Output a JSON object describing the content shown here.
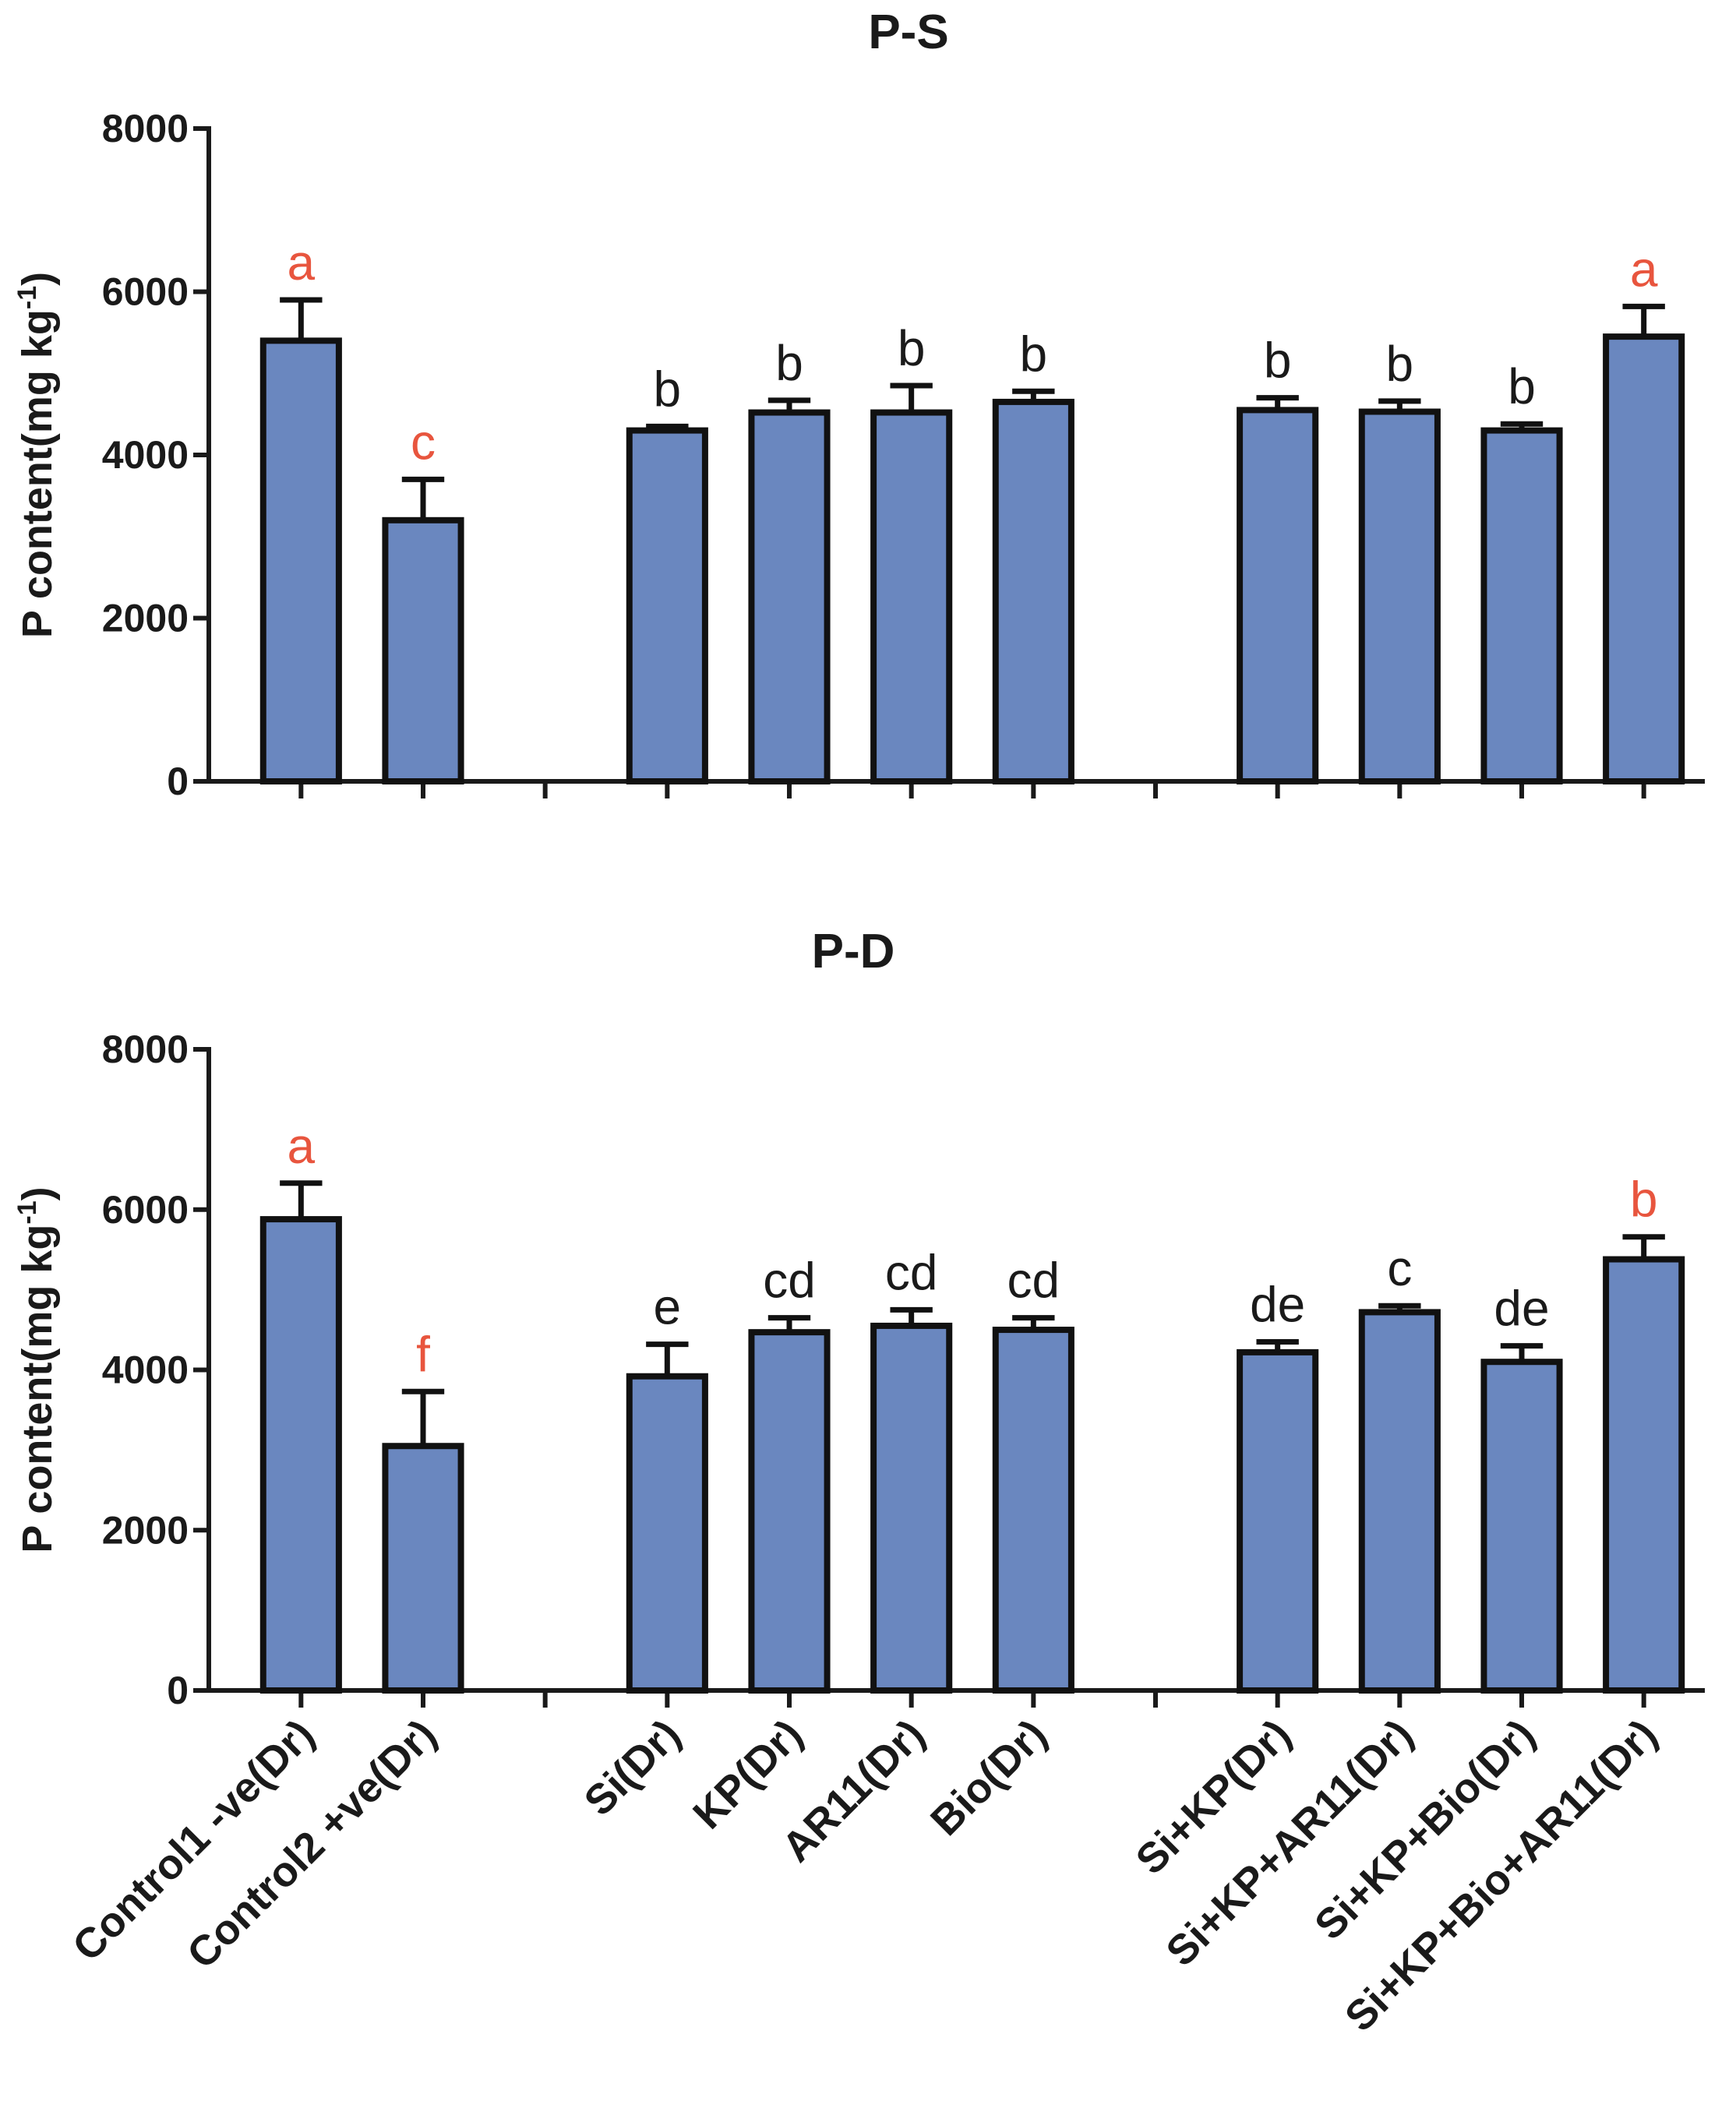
{
  "chart_data": [
    {
      "type": "bar",
      "title": "P-S",
      "ylabel": "P content(mg kg",
      "ylabel_superscript": "-1",
      "ylabel_suffix": ")",
      "xlabel": "",
      "ylim": [
        0,
        8000
      ],
      "yticks": [
        0,
        2000,
        4000,
        6000,
        8000
      ],
      "categories": [
        "Control1 -ve(Dr)",
        "Control2 +ve(Dr)",
        "Si(Dr)",
        "KP(Dr)",
        "AR11(Dr)",
        "Bio(Dr)",
        "Si+KP(Dr)",
        "Si+KP+AR11(Dr)",
        "Si+KP+Bio(Dr)",
        "Si+KP+Bio+AR11(Dr)"
      ],
      "values": [
        5400,
        3200,
        4300,
        4520,
        4520,
        4650,
        4550,
        4530,
        4300,
        5450
      ],
      "errors": [
        500,
        500,
        50,
        150,
        330,
        130,
        150,
        130,
        80,
        370
      ],
      "letters": [
        "a",
        "c",
        "b",
        "b",
        "b",
        "b",
        "b",
        "b",
        "b",
        "a"
      ],
      "letter_colors": [
        "#e8553e",
        "#e8553e",
        "#1a1a1a",
        "#1a1a1a",
        "#1a1a1a",
        "#1a1a1a",
        "#1a1a1a",
        "#1a1a1a",
        "#1a1a1a",
        "#e8553e"
      ],
      "bar_color": "#6a87bf",
      "show_category_labels": false
    },
    {
      "type": "bar",
      "title": "P-D",
      "ylabel": "P content(mg kg",
      "ylabel_superscript": "-1",
      "ylabel_suffix": ")",
      "xlabel": "",
      "ylim": [
        0,
        8000
      ],
      "yticks": [
        0,
        2000,
        4000,
        6000,
        8000
      ],
      "categories": [
        "Control1 -ve(Dr)",
        "Control2 +ve(Dr)",
        "Si(Dr)",
        "KP(Dr)",
        "AR11(Dr)",
        "Bio(Dr)",
        "Si+KP(Dr)",
        "Si+KP+AR11(Dr)",
        "Si+KP+Bio(Dr)",
        "Si+KP+Bio+AR11(Dr)"
      ],
      "values": [
        5880,
        3050,
        3920,
        4470,
        4550,
        4500,
        4220,
        4720,
        4100,
        5380
      ],
      "errors": [
        450,
        680,
        400,
        180,
        200,
        150,
        130,
        80,
        200,
        280
      ],
      "letters": [
        "a",
        "f",
        "e",
        "cd",
        "cd",
        "cd",
        "de",
        "c",
        "de",
        "b"
      ],
      "letter_colors": [
        "#e8553e",
        "#e8553e",
        "#1a1a1a",
        "#1a1a1a",
        "#1a1a1a",
        "#1a1a1a",
        "#1a1a1a",
        "#1a1a1a",
        "#1a1a1a",
        "#e8553e"
      ],
      "bar_color": "#6a87bf",
      "show_category_labels": true
    }
  ]
}
